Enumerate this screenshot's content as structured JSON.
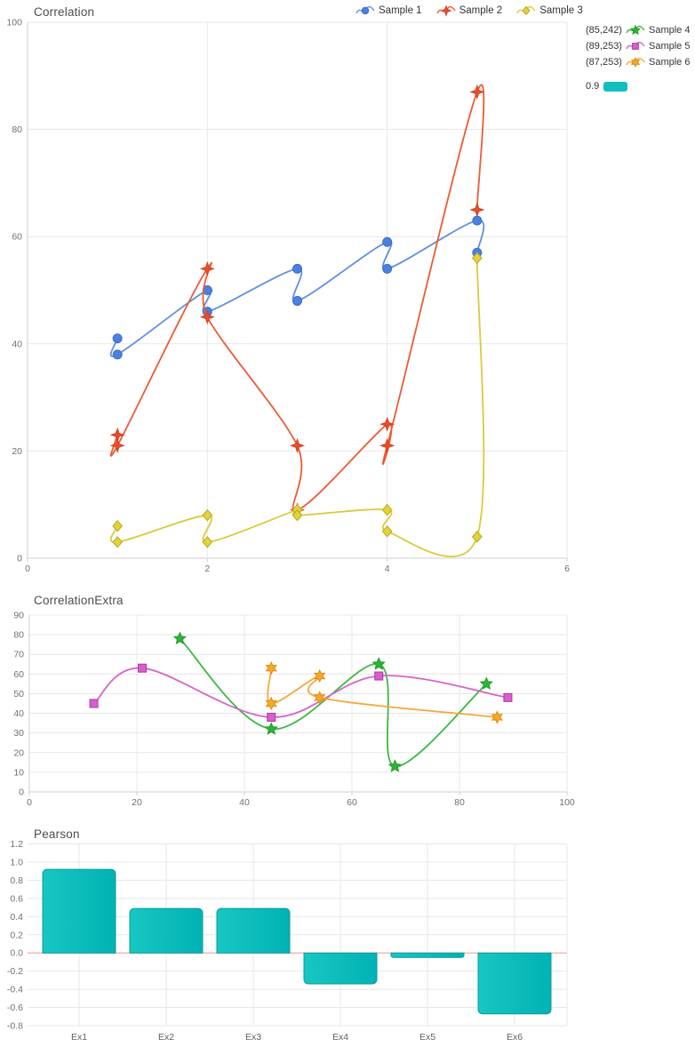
{
  "colors": {
    "grid": "#e7e7e7",
    "axis": "#cfcfcf",
    "tick_text": "#707070",
    "category_text": "#616161",
    "title_text": "#4d4d4d",
    "legend_text": "#333333",
    "zero_line": "#f2a8a2",
    "teal": "#12bfbf"
  },
  "chart_data": [
    {
      "type": "line",
      "title": "Correlation",
      "xlim": [
        0,
        6
      ],
      "ylim": [
        0,
        100
      ],
      "x_ticks": [
        0,
        2,
        4,
        6
      ],
      "y_ticks": [
        0,
        20,
        40,
        60,
        80,
        100
      ],
      "grid": true,
      "legend_position": "top",
      "series": [
        {
          "name": "Sample 1",
          "symbol": "circle",
          "color": "#6090e0",
          "fill": "#4c80dd",
          "stroke": "#3b6ed0",
          "points": [
            [
              1,
              41
            ],
            [
              1,
              38
            ],
            [
              2,
              50
            ],
            [
              2,
              46
            ],
            [
              3,
              54
            ],
            [
              3,
              48
            ],
            [
              4,
              59
            ],
            [
              4,
              54
            ],
            [
              5,
              63
            ],
            [
              5,
              57
            ]
          ]
        },
        {
          "name": "Sample 2",
          "symbol": "star4",
          "color": "#ed5a36",
          "fill": "#e84e2c",
          "stroke": "#d6401f",
          "points": [
            [
              1,
              23
            ],
            [
              1,
              21
            ],
            [
              2,
              54
            ],
            [
              2,
              45
            ],
            [
              3,
              21
            ],
            [
              3,
              9
            ],
            [
              4,
              25
            ],
            [
              4,
              21
            ],
            [
              5,
              87
            ],
            [
              5,
              65
            ]
          ]
        },
        {
          "name": "Sample 3",
          "symbol": "diamond",
          "color": "#d9cb3a",
          "fill": "#e3d23d",
          "stroke": "#b9a81f",
          "points": [
            [
              1,
              6
            ],
            [
              1,
              3
            ],
            [
              2,
              8
            ],
            [
              2,
              3
            ],
            [
              3,
              9
            ],
            [
              3,
              8
            ],
            [
              4,
              9
            ],
            [
              4,
              5
            ],
            [
              5,
              4
            ],
            [
              5,
              56
            ]
          ]
        }
      ]
    },
    {
      "type": "line",
      "title": "CorrelationExtra",
      "xlim": [
        0,
        100
      ],
      "ylim": [
        0,
        90
      ],
      "x_ticks": [
        0,
        20,
        40,
        60,
        80,
        100
      ],
      "y_ticks": [
        0,
        10,
        20,
        30,
        40,
        50,
        60,
        70,
        80,
        90
      ],
      "grid": true,
      "series": [
        {
          "name": "Sample 4",
          "symbol": "star5",
          "color": "#3cb842",
          "fill": "#2eb335",
          "stroke": "#219c28",
          "points": [
            [
              28,
              78
            ],
            [
              45,
              32
            ],
            [
              65,
              65
            ],
            [
              68,
              13
            ],
            [
              85,
              55
            ]
          ]
        },
        {
          "name": "Sample 5",
          "symbol": "square",
          "color": "#d565c8",
          "fill": "#d85ece",
          "stroke": "#a93a9e",
          "points": [
            [
              12,
              45
            ],
            [
              21,
              63
            ],
            [
              45,
              38
            ],
            [
              65,
              59
            ],
            [
              89,
              48
            ]
          ]
        },
        {
          "name": "Sample 6",
          "symbol": "star6",
          "color": "#f5a83a",
          "fill": "#f7a72b",
          "stroke": "#dd8e10",
          "points": [
            [
              45,
              63
            ],
            [
              45,
              45
            ],
            [
              54,
              59
            ],
            [
              54,
              48
            ],
            [
              87,
              38
            ]
          ]
        }
      ]
    },
    {
      "type": "bar",
      "title": "Pearson",
      "categories": [
        "Ex1",
        "Ex2",
        "Ex3",
        "Ex4",
        "Ex5",
        "Ex6"
      ],
      "values": [
        0.92,
        0.49,
        0.49,
        -0.34,
        -0.05,
        -0.67
      ],
      "ylim": [
        -0.8,
        1.2
      ],
      "y_ticks": [
        -0.8,
        -0.6,
        -0.4,
        -0.2,
        0.0,
        0.2,
        0.4,
        0.6,
        0.8,
        1.0,
        1.2
      ],
      "series_label": "0.9",
      "bar_gradient": [
        "#17c7c1",
        "#01b2b4"
      ],
      "bar_stroke": "#0a9c9c"
    }
  ],
  "legends": {
    "side": {
      "rows": [
        {
          "prefix": "(85,242)",
          "label": "Sample 4"
        },
        {
          "prefix": "(89,253)",
          "label": "Sample 5"
        },
        {
          "prefix": "(87,253)",
          "label": "Sample 6"
        }
      ],
      "extra": {
        "label": "0.9"
      }
    }
  }
}
